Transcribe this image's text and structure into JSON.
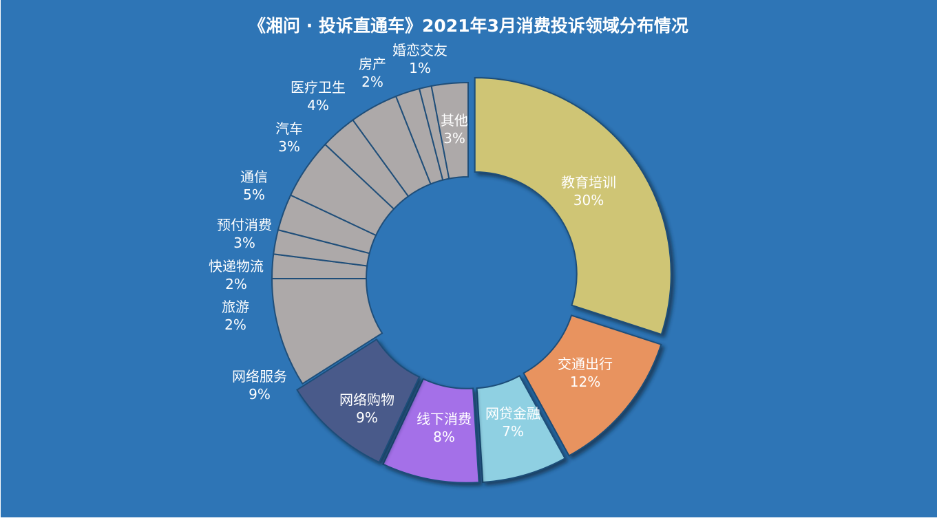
{
  "chart_data": {
    "type": "pie",
    "variant": "donut",
    "title": "《湘问 · 投诉直通车》2021年3月消费投诉领域分布情况",
    "unit": "%",
    "start": "top, clockwise",
    "slices": [
      {
        "label": "教育培训",
        "value": 30,
        "display": "30%",
        "color": "#CFC574",
        "exploded": true
      },
      {
        "label": "交通出行",
        "value": 12,
        "display": "12%",
        "color": "#E8935F",
        "exploded": true
      },
      {
        "label": "网贷金融",
        "value": 7,
        "display": "7%",
        "color": "#8FD0E2",
        "exploded": true
      },
      {
        "label": "线下消费",
        "value": 8,
        "display": "8%",
        "color": "#A470E8",
        "exploded": true
      },
      {
        "label": "网络购物",
        "value": 9,
        "display": "9%",
        "color": "#4A5A8A",
        "exploded": true
      },
      {
        "label": "网络服务",
        "value": 9,
        "display": "9%",
        "color": "#ADA9A9",
        "exploded": false
      },
      {
        "label": "旅游",
        "value": 2,
        "display": "2%",
        "color": "#ADA9A9",
        "exploded": false
      },
      {
        "label": "快递物流",
        "value": 2,
        "display": "2%",
        "color": "#ADA9A9",
        "exploded": false
      },
      {
        "label": "预付消费",
        "value": 3,
        "display": "3%",
        "color": "#ADA9A9",
        "exploded": false
      },
      {
        "label": "通信",
        "value": 5,
        "display": "5%",
        "color": "#ADA9A9",
        "exploded": false
      },
      {
        "label": "汽车",
        "value": 3,
        "display": "3%",
        "color": "#ADA9A9",
        "exploded": false
      },
      {
        "label": "医疗卫生",
        "value": 4,
        "display": "4%",
        "color": "#ADA9A9",
        "exploded": false
      },
      {
        "label": "房产",
        "value": 2,
        "display": "2%",
        "color": "#ADA9A9",
        "exploded": false
      },
      {
        "label": "婚恋交友",
        "value": 1,
        "display": "1%",
        "color": "#ADA9A9",
        "exploded": false
      },
      {
        "label": "其他",
        "value": 3,
        "display": "3%",
        "color": "#ADA9A9",
        "exploded": false
      }
    ],
    "background_color": "#2E75B6"
  }
}
